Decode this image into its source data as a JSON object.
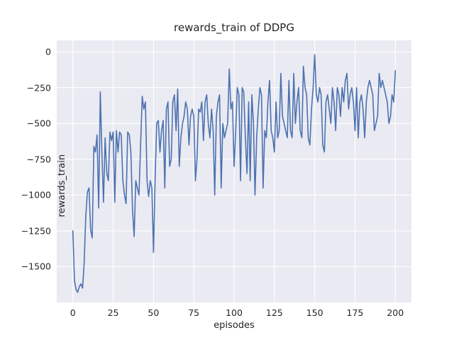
{
  "figure": {
    "title": "rewards_train of DDPG",
    "xlabel": "episodes",
    "ylabel": "rewards_train"
  },
  "chart_data": {
    "type": "line",
    "title": "rewards_train of DDPG",
    "xlabel": "episodes",
    "ylabel": "rewards_train",
    "xlim": [
      -10,
      210
    ],
    "ylim": [
      -1750,
      80
    ],
    "grid": true,
    "legend": "none",
    "background_color": "#eaeaf2",
    "grid_color": "#ffffff",
    "line_color": "#4c72b0",
    "xtick_values": [
      0,
      25,
      50,
      75,
      100,
      125,
      150,
      175,
      200
    ],
    "xtick_labels": [
      "0",
      "25",
      "50",
      "75",
      "100",
      "125",
      "150",
      "175",
      "200"
    ],
    "ytick_values": [
      0,
      -250,
      -500,
      -750,
      -1000,
      -1250,
      -1500
    ],
    "ytick_labels": [
      "0",
      "−250",
      "−500",
      "−750",
      "−1000",
      "−1250",
      "−1500"
    ],
    "x_values_are_indices": true,
    "x_start": 0,
    "x_step": 1,
    "series": [
      {
        "name": "rewards_train",
        "values": [
          -1250,
          -1600,
          -1660,
          -1680,
          -1640,
          -1620,
          -1650,
          -1480,
          -1150,
          -980,
          -950,
          -1240,
          -1300,
          -660,
          -700,
          -580,
          -1090,
          -280,
          -700,
          -1050,
          -600,
          -850,
          -900,
          -560,
          -620,
          -560,
          -1050,
          -550,
          -700,
          -560,
          -580,
          -900,
          -1000,
          -1060,
          -560,
          -580,
          -700,
          -1100,
          -1290,
          -900,
          -950,
          -1000,
          -650,
          -310,
          -400,
          -350,
          -900,
          -1010,
          -900,
          -950,
          -1400,
          -900,
          -500,
          -480,
          -700,
          -550,
          -480,
          -950,
          -400,
          -350,
          -800,
          -750,
          -350,
          -300,
          -550,
          -260,
          -800,
          -600,
          -500,
          -450,
          -350,
          -400,
          -650,
          -450,
          -400,
          -450,
          -900,
          -750,
          -400,
          -420,
          -350,
          -620,
          -350,
          -300,
          -500,
          -600,
          -400,
          -550,
          -1000,
          -450,
          -350,
          -300,
          -950,
          -500,
          -600,
          -550,
          -500,
          -120,
          -400,
          -350,
          -800,
          -550,
          -250,
          -300,
          -900,
          -250,
          -280,
          -600,
          -850,
          -350,
          -900,
          -300,
          -500,
          -1000,
          -600,
          -400,
          -250,
          -300,
          -950,
          -550,
          -600,
          -350,
          -200,
          -550,
          -600,
          -700,
          -350,
          -600,
          -550,
          -150,
          -450,
          -500,
          -550,
          -600,
          -200,
          -550,
          -600,
          -150,
          -500,
          -350,
          -250,
          -550,
          -600,
          -100,
          -250,
          -300,
          -600,
          -650,
          -400,
          -250,
          -20,
          -300,
          -350,
          -250,
          -300,
          -650,
          -700,
          -350,
          -300,
          -400,
          -500,
          -250,
          -350,
          -550,
          -250,
          -300,
          -450,
          -250,
          -350,
          -200,
          -150,
          -400,
          -300,
          -250,
          -350,
          -550,
          -250,
          -600,
          -350,
          -300,
          -400,
          -600,
          -350,
          -250,
          -200,
          -250,
          -300,
          -550,
          -500,
          -450,
          -150,
          -250,
          -200,
          -250,
          -300,
          -350,
          -500,
          -450,
          -300,
          -350,
          -130
        ]
      }
    ]
  }
}
